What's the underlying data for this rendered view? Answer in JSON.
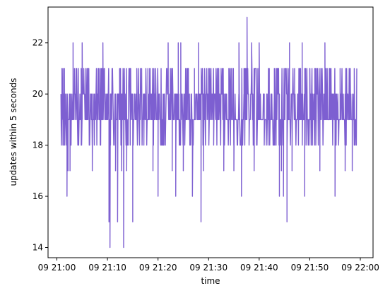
{
  "chart_data": {
    "type": "line",
    "xlabel": "time",
    "ylabel": "updates within 5 seconds",
    "series_color": "#7d5fd1",
    "grid": false,
    "xlim_min": [
      0,
      60
    ],
    "ylim": [
      13.6,
      23.4
    ],
    "x_ticks": [
      {
        "value": 0,
        "label": "09 21:00"
      },
      {
        "value": 10,
        "label": "09 21:10"
      },
      {
        "value": 20,
        "label": "09 21:20"
      },
      {
        "value": 30,
        "label": "09 21:30"
      },
      {
        "value": 40,
        "label": "09 21:40"
      },
      {
        "value": 50,
        "label": "09 21:50"
      },
      {
        "value": 60,
        "label": "09 22:00"
      }
    ],
    "y_ticks": [
      {
        "value": 14,
        "label": "14"
      },
      {
        "value": 16,
        "label": "16"
      },
      {
        "value": 18,
        "label": "18"
      },
      {
        "value": 20,
        "label": "20"
      },
      {
        "value": 22,
        "label": "22"
      }
    ],
    "x_range_min": [
      0.8,
      59.3
    ],
    "spikes": [
      {
        "x": 1.0,
        "y": 21
      },
      {
        "x": 1.5,
        "y": 21
      },
      {
        "x": 1.2,
        "y": 18
      },
      {
        "x": 2.0,
        "y": 16
      },
      {
        "x": 2.2,
        "y": 17
      },
      {
        "x": 2.6,
        "y": 17
      },
      {
        "x": 3.2,
        "y": 22
      },
      {
        "x": 3.8,
        "y": 21
      },
      {
        "x": 4.2,
        "y": 21
      },
      {
        "x": 4.8,
        "y": 21
      },
      {
        "x": 5.0,
        "y": 22
      },
      {
        "x": 6.0,
        "y": 21
      },
      {
        "x": 7.0,
        "y": 17
      },
      {
        "x": 8.5,
        "y": 21
      },
      {
        "x": 9.1,
        "y": 22
      },
      {
        "x": 10.3,
        "y": 15
      },
      {
        "x": 10.5,
        "y": 14
      },
      {
        "x": 10.6,
        "y": 18
      },
      {
        "x": 11.0,
        "y": 21
      },
      {
        "x": 11.6,
        "y": 17
      },
      {
        "x": 12.0,
        "y": 15
      },
      {
        "x": 12.4,
        "y": 21
      },
      {
        "x": 12.8,
        "y": 17
      },
      {
        "x": 13.2,
        "y": 14
      },
      {
        "x": 13.8,
        "y": 17
      },
      {
        "x": 14.5,
        "y": 18
      },
      {
        "x": 15.0,
        "y": 15
      },
      {
        "x": 15.8,
        "y": 21
      },
      {
        "x": 16.5,
        "y": 21
      },
      {
        "x": 17.2,
        "y": 18
      },
      {
        "x": 18.0,
        "y": 21
      },
      {
        "x": 19.0,
        "y": 17
      },
      {
        "x": 20.0,
        "y": 16
      },
      {
        "x": 21.0,
        "y": 18
      },
      {
        "x": 22.0,
        "y": 22
      },
      {
        "x": 22.8,
        "y": 17
      },
      {
        "x": 23.5,
        "y": 16
      },
      {
        "x": 24.0,
        "y": 22
      },
      {
        "x": 24.5,
        "y": 22
      },
      {
        "x": 25.0,
        "y": 17
      },
      {
        "x": 26.0,
        "y": 21
      },
      {
        "x": 26.8,
        "y": 16
      },
      {
        "x": 27.2,
        "y": 21
      },
      {
        "x": 28.0,
        "y": 22
      },
      {
        "x": 28.5,
        "y": 15
      },
      {
        "x": 29.0,
        "y": 17
      },
      {
        "x": 30.0,
        "y": 21
      },
      {
        "x": 31.0,
        "y": 18
      },
      {
        "x": 32.0,
        "y": 21
      },
      {
        "x": 33.0,
        "y": 17
      },
      {
        "x": 34.0,
        "y": 21
      },
      {
        "x": 35.0,
        "y": 17
      },
      {
        "x": 36.0,
        "y": 22
      },
      {
        "x": 36.5,
        "y": 16
      },
      {
        "x": 37.0,
        "y": 21
      },
      {
        "x": 37.6,
        "y": 23
      },
      {
        "x": 38.0,
        "y": 18
      },
      {
        "x": 38.5,
        "y": 22
      },
      {
        "x": 39.0,
        "y": 17
      },
      {
        "x": 40.0,
        "y": 22
      },
      {
        "x": 41.0,
        "y": 18
      },
      {
        "x": 42.0,
        "y": 21
      },
      {
        "x": 43.0,
        "y": 21
      },
      {
        "x": 44.0,
        "y": 16
      },
      {
        "x": 44.4,
        "y": 17
      },
      {
        "x": 44.8,
        "y": 16
      },
      {
        "x": 45.5,
        "y": 15
      },
      {
        "x": 46.0,
        "y": 22
      },
      {
        "x": 46.5,
        "y": 17
      },
      {
        "x": 47.0,
        "y": 21
      },
      {
        "x": 48.0,
        "y": 21
      },
      {
        "x": 48.5,
        "y": 22
      },
      {
        "x": 49.0,
        "y": 16
      },
      {
        "x": 50.0,
        "y": 21
      },
      {
        "x": 51.0,
        "y": 21
      },
      {
        "x": 52.0,
        "y": 17
      },
      {
        "x": 53.0,
        "y": 22
      },
      {
        "x": 54.0,
        "y": 21
      },
      {
        "x": 55.0,
        "y": 16
      },
      {
        "x": 56.0,
        "y": 21
      },
      {
        "x": 57.0,
        "y": 17
      },
      {
        "x": 58.0,
        "y": 21
      },
      {
        "x": 58.4,
        "y": 17
      },
      {
        "x": 58.8,
        "y": 21
      }
    ]
  }
}
